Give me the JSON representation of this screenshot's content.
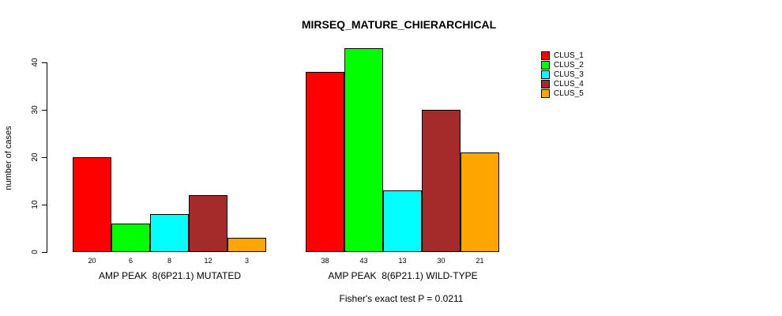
{
  "title": "MIRSEQ_MATURE_CHIERARCHICAL",
  "footer": "Fisher's exact test P = 0.0211",
  "chart_data": {
    "type": "bar",
    "title": "MIRSEQ_MATURE_CHIERARCHICAL",
    "ylabel": "number of cases",
    "ylim": [
      0,
      40
    ],
    "yticks": [
      0,
      10,
      20,
      30,
      40
    ],
    "grid": false,
    "legend_position": "top-right",
    "series_names": [
      "CLUS_1",
      "CLUS_2",
      "CLUS_3",
      "CLUS_4",
      "CLUS_5"
    ],
    "colors": [
      "#FF0000",
      "#00FF00",
      "#00FFFF",
      "#A52A2A",
      "#FFA500"
    ],
    "groups": [
      {
        "label": "AMP PEAK  8(6P21.1) MUTATED",
        "values": [
          20,
          6,
          8,
          12,
          3
        ]
      },
      {
        "label": "AMP PEAK  8(6P21.1) WILD-TYPE",
        "values": [
          38,
          43,
          13,
          30,
          21
        ]
      }
    ],
    "annotation": "Fisher's exact test P = 0.0211"
  }
}
